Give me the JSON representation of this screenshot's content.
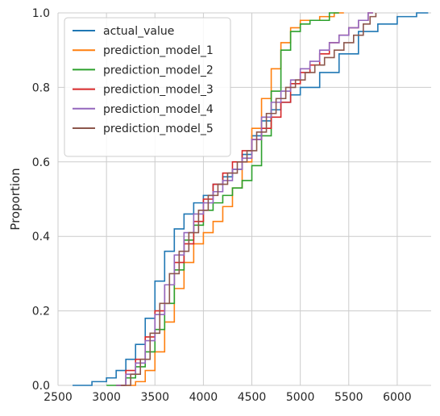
{
  "chart_data": {
    "type": "line",
    "subtype": "ecdf-step",
    "title": "",
    "xlabel": "",
    "ylabel": "Proportion",
    "xlim": [
      2500,
      6350
    ],
    "ylim": [
      0,
      1
    ],
    "x_ticks": [
      2500,
      3000,
      3500,
      4000,
      4500,
      5000,
      5500,
      6000
    ],
    "y_ticks": [
      0.0,
      0.2,
      0.4,
      0.6,
      0.8,
      1.0
    ],
    "x_tick_labels": [
      "2500",
      "3000",
      "3500",
      "4000",
      "4500",
      "5000",
      "5500",
      "6000"
    ],
    "y_tick_labels": [
      "0.0",
      "0.2",
      "0.4",
      "0.6",
      "0.8",
      "1.0"
    ],
    "grid": true,
    "legend_position": "top-left",
    "series": [
      {
        "name": "actual_value",
        "color": "#1f77b4",
        "points": [
          [
            2650,
            0.0
          ],
          [
            2850,
            0.01
          ],
          [
            3000,
            0.02
          ],
          [
            3100,
            0.04
          ],
          [
            3200,
            0.07
          ],
          [
            3300,
            0.11
          ],
          [
            3400,
            0.18
          ],
          [
            3500,
            0.28
          ],
          [
            3600,
            0.36
          ],
          [
            3700,
            0.42
          ],
          [
            3800,
            0.46
          ],
          [
            3900,
            0.49
          ],
          [
            4000,
            0.51
          ],
          [
            4100,
            0.54
          ],
          [
            4200,
            0.56
          ],
          [
            4300,
            0.58
          ],
          [
            4400,
            0.62
          ],
          [
            4500,
            0.67
          ],
          [
            4600,
            0.71
          ],
          [
            4700,
            0.74
          ],
          [
            4800,
            0.76
          ],
          [
            4900,
            0.78
          ],
          [
            5000,
            0.8
          ],
          [
            5200,
            0.84
          ],
          [
            5400,
            0.89
          ],
          [
            5600,
            0.95
          ],
          [
            5800,
            0.97
          ],
          [
            6000,
            0.99
          ],
          [
            6200,
            1.0
          ],
          [
            6320,
            1.0
          ]
        ]
      },
      {
        "name": "prediction_model_1",
        "color": "#ff7f0e",
        "points": [
          [
            3100,
            0.0
          ],
          [
            3300,
            0.01
          ],
          [
            3400,
            0.04
          ],
          [
            3500,
            0.09
          ],
          [
            3600,
            0.17
          ],
          [
            3700,
            0.26
          ],
          [
            3800,
            0.33
          ],
          [
            3900,
            0.38
          ],
          [
            4000,
            0.41
          ],
          [
            4100,
            0.44
          ],
          [
            4200,
            0.48
          ],
          [
            4300,
            0.53
          ],
          [
            4400,
            0.6
          ],
          [
            4500,
            0.69
          ],
          [
            4600,
            0.77
          ],
          [
            4700,
            0.85
          ],
          [
            4800,
            0.92
          ],
          [
            4900,
            0.96
          ],
          [
            5000,
            0.98
          ],
          [
            5200,
            0.99
          ],
          [
            5350,
            1.0
          ],
          [
            5450,
            1.0
          ]
        ]
      },
      {
        "name": "prediction_model_2",
        "color": "#2ca02c",
        "points": [
          [
            3000,
            0.0
          ],
          [
            3200,
            0.02
          ],
          [
            3300,
            0.05
          ],
          [
            3400,
            0.09
          ],
          [
            3500,
            0.15
          ],
          [
            3600,
            0.22
          ],
          [
            3700,
            0.31
          ],
          [
            3800,
            0.39
          ],
          [
            3900,
            0.43
          ],
          [
            4000,
            0.47
          ],
          [
            4100,
            0.49
          ],
          [
            4200,
            0.51
          ],
          [
            4300,
            0.53
          ],
          [
            4400,
            0.55
          ],
          [
            4500,
            0.59
          ],
          [
            4600,
            0.67
          ],
          [
            4700,
            0.79
          ],
          [
            4800,
            0.9
          ],
          [
            4900,
            0.95
          ],
          [
            5000,
            0.97
          ],
          [
            5100,
            0.98
          ],
          [
            5300,
            1.0
          ],
          [
            5400,
            1.0
          ]
        ]
      },
      {
        "name": "prediction_model_3",
        "color": "#d62728",
        "points": [
          [
            3100,
            0.0
          ],
          [
            3200,
            0.04
          ],
          [
            3300,
            0.07
          ],
          [
            3400,
            0.13
          ],
          [
            3500,
            0.2
          ],
          [
            3600,
            0.27
          ],
          [
            3700,
            0.33
          ],
          [
            3800,
            0.38
          ],
          [
            3900,
            0.44
          ],
          [
            4000,
            0.5
          ],
          [
            4100,
            0.54
          ],
          [
            4200,
            0.57
          ],
          [
            4300,
            0.6
          ],
          [
            4400,
            0.63
          ],
          [
            4500,
            0.66
          ],
          [
            4600,
            0.69
          ],
          [
            4700,
            0.72
          ],
          [
            4800,
            0.76
          ],
          [
            4900,
            0.81
          ],
          [
            5000,
            0.84
          ],
          [
            5100,
            0.86
          ],
          [
            5200,
            0.89
          ],
          [
            5300,
            0.92
          ],
          [
            5400,
            0.94
          ],
          [
            5500,
            0.96
          ],
          [
            5600,
            0.98
          ],
          [
            5700,
            1.0
          ],
          [
            5750,
            1.0
          ]
        ]
      },
      {
        "name": "prediction_model_4",
        "color": "#9467bd",
        "points": [
          [
            3100,
            0.0
          ],
          [
            3200,
            0.03
          ],
          [
            3300,
            0.06
          ],
          [
            3400,
            0.12
          ],
          [
            3500,
            0.19
          ],
          [
            3600,
            0.27
          ],
          [
            3700,
            0.35
          ],
          [
            3800,
            0.41
          ],
          [
            3900,
            0.46
          ],
          [
            4000,
            0.49
          ],
          [
            4100,
            0.52
          ],
          [
            4200,
            0.55
          ],
          [
            4300,
            0.58
          ],
          [
            4400,
            0.61
          ],
          [
            4500,
            0.66
          ],
          [
            4600,
            0.72
          ],
          [
            4700,
            0.76
          ],
          [
            4800,
            0.79
          ],
          [
            4900,
            0.82
          ],
          [
            5000,
            0.85
          ],
          [
            5100,
            0.87
          ],
          [
            5200,
            0.9
          ],
          [
            5300,
            0.92
          ],
          [
            5400,
            0.94
          ],
          [
            5500,
            0.96
          ],
          [
            5600,
            0.98
          ],
          [
            5700,
            1.0
          ],
          [
            5750,
            1.0
          ]
        ]
      },
      {
        "name": "prediction_model_5",
        "color": "#8c564b",
        "points": [
          [
            3150,
            0.0
          ],
          [
            3250,
            0.03
          ],
          [
            3350,
            0.07
          ],
          [
            3450,
            0.14
          ],
          [
            3550,
            0.22
          ],
          [
            3650,
            0.3
          ],
          [
            3750,
            0.36
          ],
          [
            3850,
            0.41
          ],
          [
            3950,
            0.47
          ],
          [
            4050,
            0.51
          ],
          [
            4150,
            0.54
          ],
          [
            4250,
            0.57
          ],
          [
            4350,
            0.6
          ],
          [
            4450,
            0.63
          ],
          [
            4550,
            0.68
          ],
          [
            4650,
            0.73
          ],
          [
            4750,
            0.77
          ],
          [
            4850,
            0.8
          ],
          [
            4950,
            0.82
          ],
          [
            5050,
            0.84
          ],
          [
            5150,
            0.86
          ],
          [
            5250,
            0.88
          ],
          [
            5350,
            0.9
          ],
          [
            5450,
            0.92
          ],
          [
            5550,
            0.94
          ],
          [
            5650,
            0.97
          ],
          [
            5720,
            0.99
          ],
          [
            5780,
            1.0
          ]
        ]
      }
    ]
  }
}
